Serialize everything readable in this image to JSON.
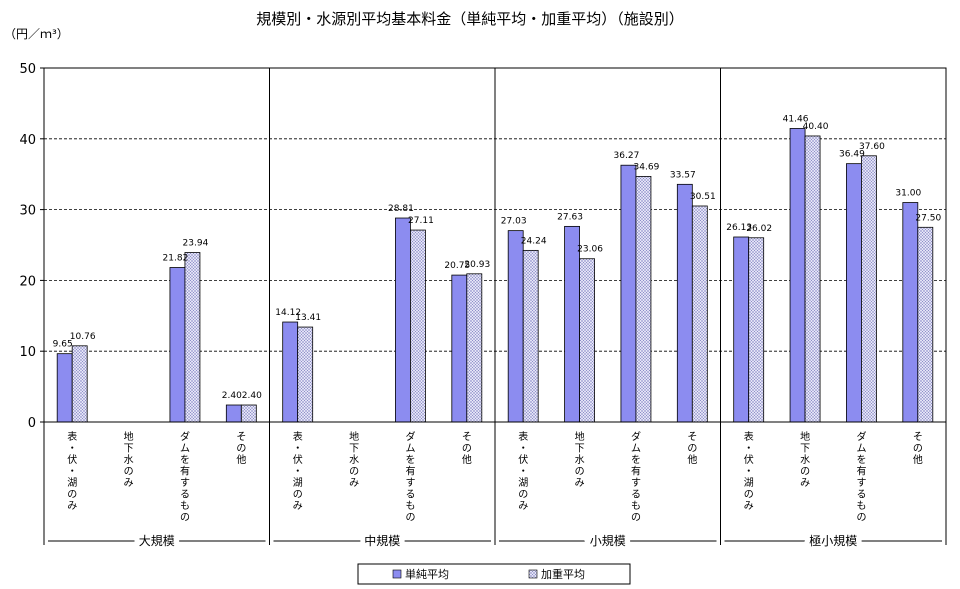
{
  "chart_data": {
    "type": "bar",
    "title": "規模別・水源別平均基本料金（単純平均・加重平均）（施設別）",
    "ylabel": "（円／ｍ³）",
    "ylim": [
      0,
      50
    ],
    "yticks": [
      0,
      10,
      20,
      30,
      40,
      50
    ],
    "grid": true,
    "legend_position": "bottom",
    "groups": [
      {
        "name": "大規模",
        "categories": [
          "表・伏・湖のみ",
          "地下水のみ",
          "ダムを有するもの",
          "その他"
        ]
      },
      {
        "name": "中規模",
        "categories": [
          "表・伏・湖のみ",
          "地下水のみ",
          "ダムを有するもの",
          "その他"
        ]
      },
      {
        "name": "小規模",
        "categories": [
          "表・伏・湖のみ",
          "地下水のみ",
          "ダムを有するもの",
          "その他"
        ]
      },
      {
        "name": "極小規模",
        "categories": [
          "表・伏・湖のみ",
          "地下水のみ",
          "ダムを有するもの",
          "その他"
        ]
      }
    ],
    "series": [
      {
        "name": "単純平均",
        "color": "#8c8cf0",
        "values": [
          9.65,
          null,
          21.82,
          2.4,
          14.12,
          null,
          28.81,
          20.75,
          27.03,
          27.63,
          36.27,
          33.57,
          26.13,
          41.46,
          36.49,
          31.0
        ],
        "labels": [
          "9.65",
          "",
          "21.82",
          "2.40",
          "14.12",
          "",
          "28.81",
          "20.75",
          "27.03",
          "27.63",
          "36.27",
          "33.57",
          "26.13",
          "41.46",
          "36.49",
          "31.00"
        ]
      },
      {
        "name": "加重平均",
        "color": "#d8d8f0",
        "pattern": "crosshatch",
        "values": [
          10.76,
          null,
          23.94,
          2.4,
          13.41,
          null,
          27.11,
          20.93,
          24.24,
          23.06,
          34.69,
          30.51,
          26.02,
          40.4,
          37.6,
          27.5
        ],
        "labels": [
          "10.76",
          "",
          "23.94",
          "2.40",
          "13.41",
          "",
          "27.11",
          "20.93",
          "24.24",
          "23.06",
          "34.69",
          "30.51",
          "26.02",
          "40.40",
          "37.60",
          "27.50"
        ]
      }
    ]
  }
}
